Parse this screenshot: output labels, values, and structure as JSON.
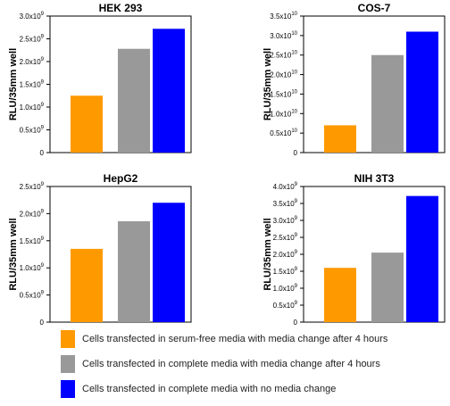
{
  "colors": {
    "serum_free": "#FF9900",
    "complete_change": "#999999",
    "no_change": "#0000FF"
  },
  "legend": [
    {
      "label": "Cells transfected in serum-free media with media change after 4 hours",
      "color": "#FF9900"
    },
    {
      "label": "Cells transfected in complete media with media change after 4 hours",
      "color": "#999999"
    },
    {
      "label": "Cells transfected in complete media with no media change",
      "color": "#0000FF"
    }
  ],
  "chart_data": [
    {
      "type": "bar",
      "title": "HEK 293",
      "ylabel": "RLU/35mm well",
      "ylim": [
        0,
        3.0
      ],
      "ticks": [
        {
          "value": 0,
          "mant": "0",
          "exp": ""
        },
        {
          "value": 0.5,
          "mant": "0.5x10",
          "exp": "9"
        },
        {
          "value": 1.0,
          "mant": "1.0x10",
          "exp": "9"
        },
        {
          "value": 1.5,
          "mant": "1.5x10",
          "exp": "9"
        },
        {
          "value": 2.0,
          "mant": "2.0x10",
          "exp": "9"
        },
        {
          "value": 2.5,
          "mant": "2.5x10",
          "exp": "9"
        },
        {
          "value": 3.0,
          "mant": "3.0x10",
          "exp": "9"
        }
      ],
      "values": [
        1.25,
        2.28,
        2.72
      ],
      "unit_multiplier": "1e9"
    },
    {
      "type": "bar",
      "title": "COS-7",
      "ylabel": "RLU/35mm well",
      "ylim": [
        0,
        3.5
      ],
      "ticks": [
        {
          "value": 0,
          "mant": "0",
          "exp": ""
        },
        {
          "value": 0.5,
          "mant": "0.5x10",
          "exp": "10"
        },
        {
          "value": 1.0,
          "mant": "1.0x10",
          "exp": "10"
        },
        {
          "value": 1.5,
          "mant": "1.5x10",
          "exp": "10"
        },
        {
          "value": 2.0,
          "mant": "2.0x10",
          "exp": "10"
        },
        {
          "value": 2.5,
          "mant": "2.5x10",
          "exp": "10"
        },
        {
          "value": 3.0,
          "mant": "3.0x10",
          "exp": "10"
        },
        {
          "value": 3.5,
          "mant": "3.5x10",
          "exp": "10"
        }
      ],
      "values": [
        0.7,
        2.5,
        3.1
      ],
      "unit_multiplier": "1e10"
    },
    {
      "type": "bar",
      "title": "HepG2",
      "ylabel": "RLU/35mm well",
      "ylim": [
        0,
        2.5
      ],
      "ticks": [
        {
          "value": 0,
          "mant": "0",
          "exp": ""
        },
        {
          "value": 0.5,
          "mant": "0.5x10",
          "exp": "9"
        },
        {
          "value": 1.0,
          "mant": "1.0x10",
          "exp": "9"
        },
        {
          "value": 1.5,
          "mant": "1.5x10",
          "exp": "9"
        },
        {
          "value": 2.0,
          "mant": "2.0x10",
          "exp": "9"
        },
        {
          "value": 2.5,
          "mant": "2.5x10",
          "exp": "9"
        }
      ],
      "values": [
        1.35,
        1.86,
        2.2
      ],
      "unit_multiplier": "1e9"
    },
    {
      "type": "bar",
      "title": "NIH 3T3",
      "ylabel": "RLU/35mm well",
      "ylim": [
        0,
        4.0
      ],
      "ticks": [
        {
          "value": 0,
          "mant": "0",
          "exp": ""
        },
        {
          "value": 0.5,
          "mant": "0.5x10",
          "exp": "9"
        },
        {
          "value": 1.0,
          "mant": "1.0x10",
          "exp": "9"
        },
        {
          "value": 1.5,
          "mant": "1.5x10",
          "exp": "9"
        },
        {
          "value": 2.0,
          "mant": "2.0x10",
          "exp": "9"
        },
        {
          "value": 2.5,
          "mant": "2.5x10",
          "exp": "9"
        },
        {
          "value": 3.0,
          "mant": "3.0x10",
          "exp": "9"
        },
        {
          "value": 3.5,
          "mant": "3.5x10",
          "exp": "9"
        },
        {
          "value": 4.0,
          "mant": "4.0x10",
          "exp": "9"
        }
      ],
      "values": [
        1.6,
        2.05,
        3.72
      ],
      "unit_multiplier": "1e9"
    }
  ]
}
